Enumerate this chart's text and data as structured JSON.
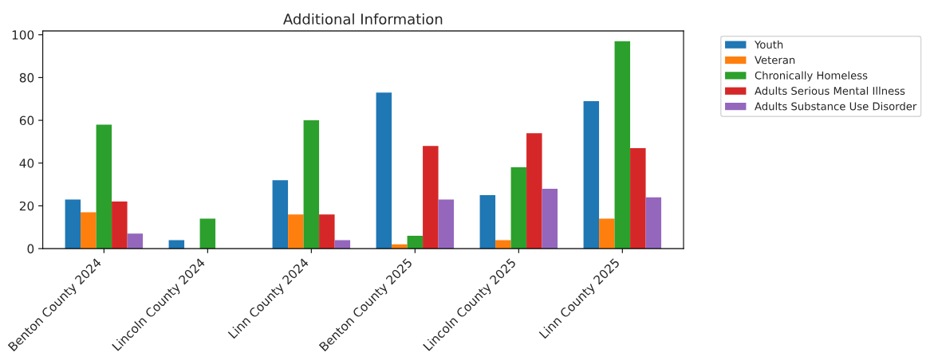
{
  "chart_data": {
    "type": "bar",
    "title": "Additional Information",
    "categories": [
      "Benton County 2024",
      "Lincoln County 2024",
      "Linn County 2024",
      "Benton County 2025",
      "Lincoln County 2025",
      "Linn County 2025"
    ],
    "series": [
      {
        "name": "Youth",
        "color": "#1f77b4",
        "values": [
          23,
          4,
          32,
          73,
          25,
          69
        ]
      },
      {
        "name": "Veteran",
        "color": "#ff7f0e",
        "values": [
          17,
          0,
          16,
          2,
          4,
          14
        ]
      },
      {
        "name": "Chronically Homeless",
        "color": "#2ca02c",
        "values": [
          58,
          14,
          60,
          6,
          38,
          97
        ]
      },
      {
        "name": "Adults Serious Mental Illness",
        "color": "#d62728",
        "values": [
          22,
          0,
          16,
          48,
          54,
          47
        ]
      },
      {
        "name": "Adults Substance Use Disorder",
        "color": "#9467bd",
        "values": [
          7,
          0,
          4,
          23,
          28,
          24
        ]
      }
    ],
    "ylim": [
      0,
      101.8
    ],
    "yticks": [
      0,
      20,
      40,
      60,
      80,
      100
    ],
    "grid": false,
    "legend": "top right"
  }
}
